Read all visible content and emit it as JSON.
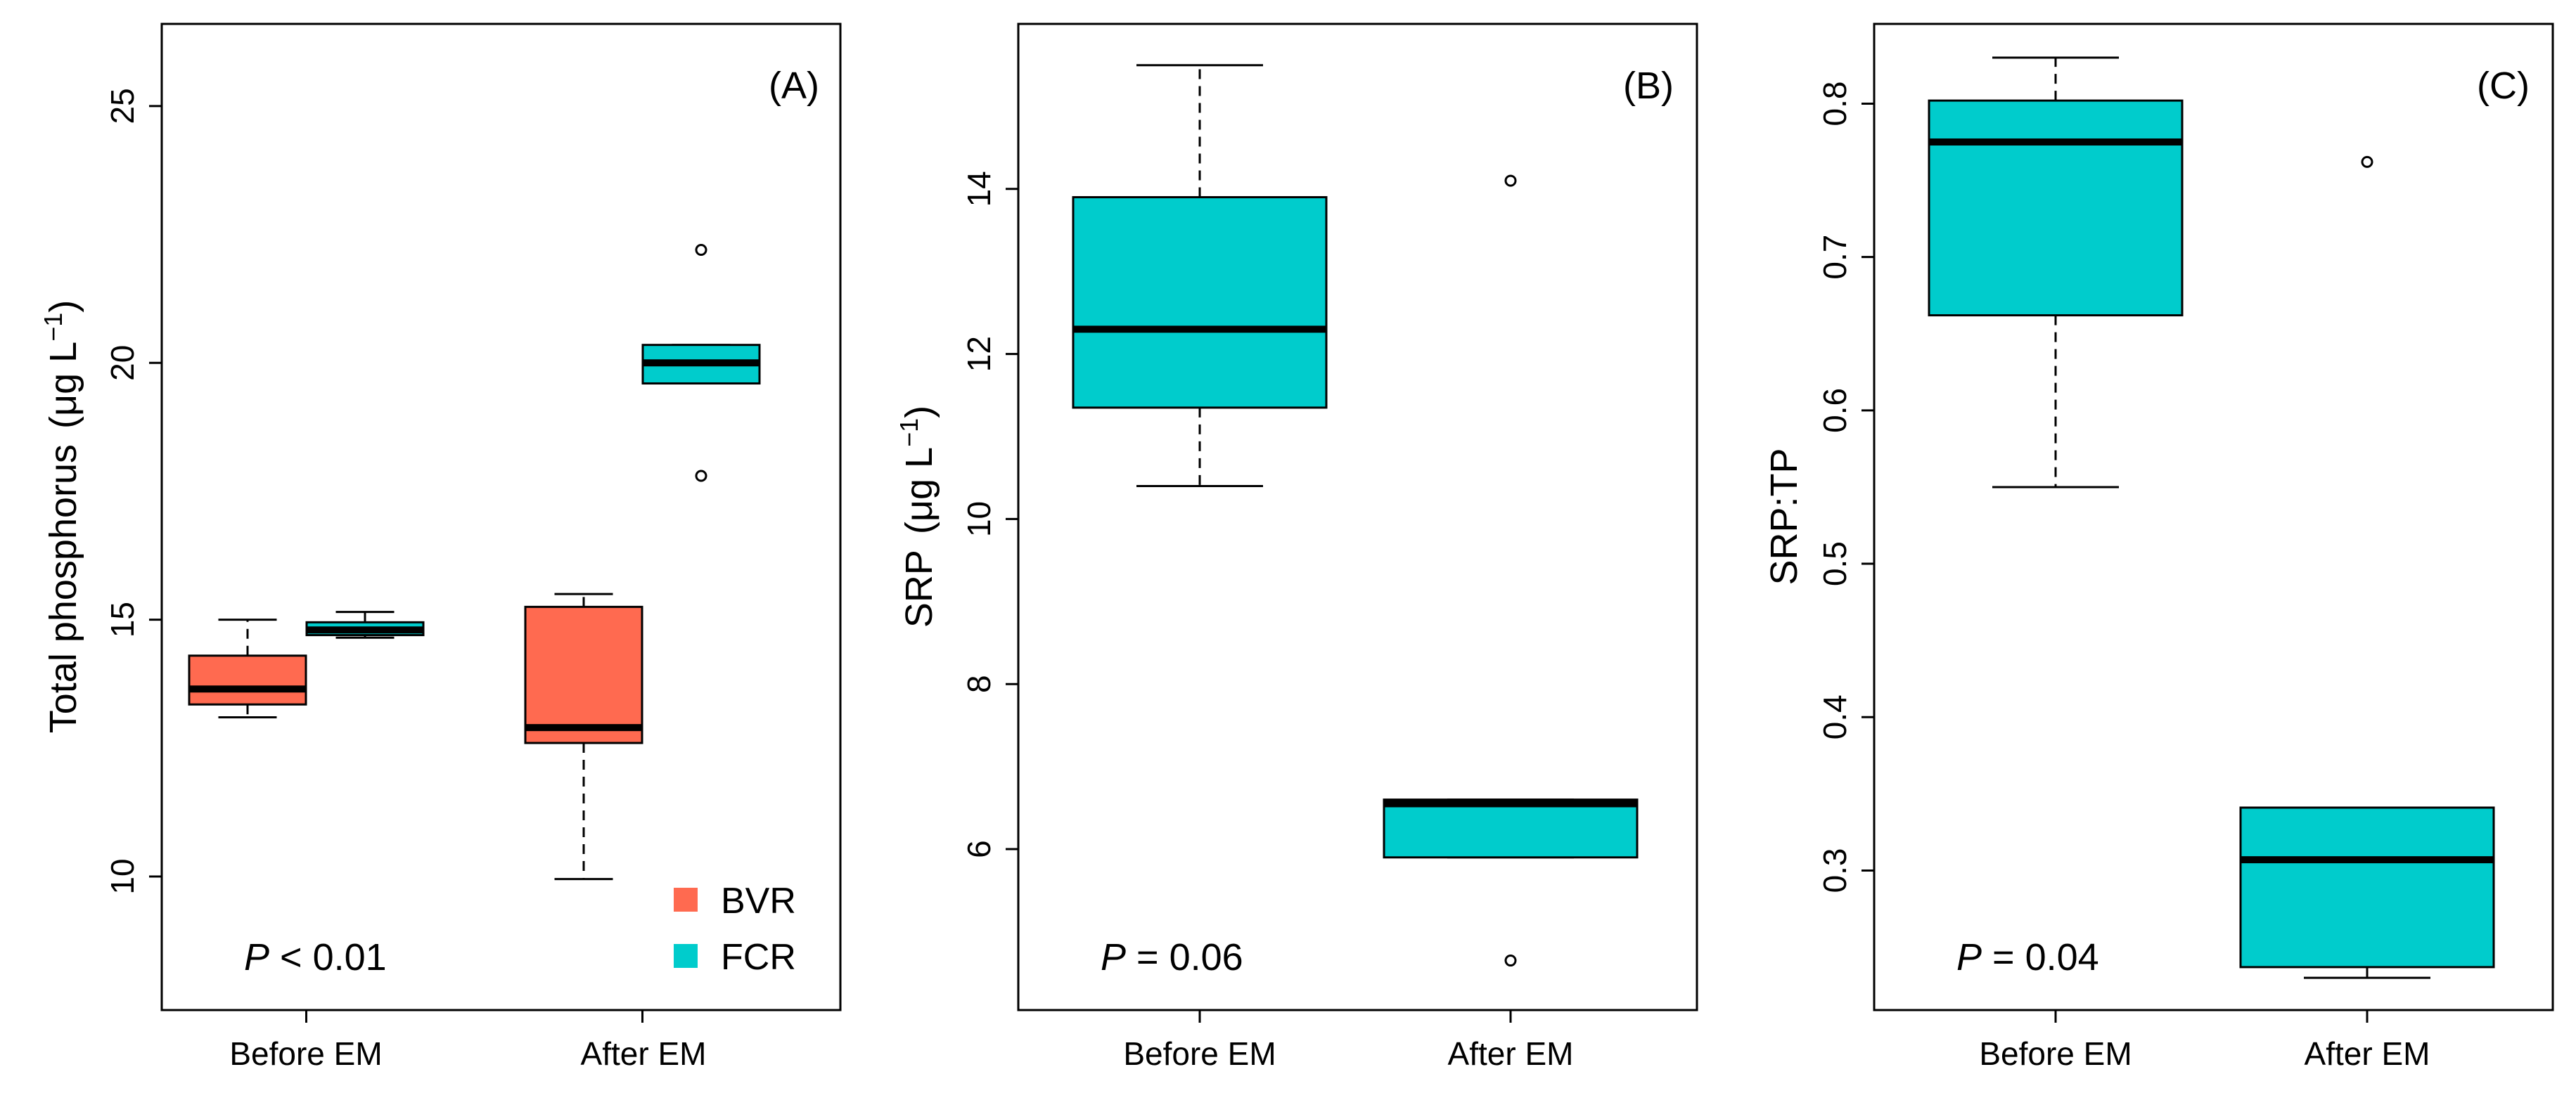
{
  "chart_data": [
    {
      "type": "boxplot",
      "panel_label": "(A)",
      "ylabel": "Total phosphorus",
      "ylabel_unit": "(μg L",
      "ylabel_sup": "−1",
      "ylabel_close": ")",
      "ylim": [
        7.4,
        26.6
      ],
      "yticks": [
        10,
        15,
        20,
        25
      ],
      "ytick_labels": [
        "10",
        "15",
        "20",
        "25"
      ],
      "categories": [
        "Before EM",
        "After EM"
      ],
      "p_symbol": "P",
      "p_rest": " < 0.01",
      "legend": [
        {
          "name": "BVR",
          "color": "#ff6a50"
        },
        {
          "name": "FCR",
          "color": "#00cccc"
        }
      ],
      "boxes": [
        {
          "category": "Before EM",
          "series": "BVR",
          "color": "#ff6a50",
          "whisker_low": 13.1,
          "q1": 13.35,
          "median": 13.65,
          "q3": 14.3,
          "whisker_high": 15.0,
          "outliers": []
        },
        {
          "category": "Before EM",
          "series": "FCR",
          "color": "#00cccc",
          "whisker_low": 14.65,
          "q1": 14.7,
          "median": 14.8,
          "q3": 14.95,
          "whisker_high": 15.15,
          "outliers": []
        },
        {
          "category": "After EM",
          "series": "BVR",
          "color": "#ff6a50",
          "whisker_low": 9.95,
          "q1": 12.6,
          "median": 12.9,
          "q3": 15.25,
          "whisker_high": 15.5,
          "outliers": []
        },
        {
          "category": "After EM",
          "series": "FCR",
          "color": "#00cccc",
          "whisker_low": 19.6,
          "q1": 19.6,
          "median": 20.0,
          "q3": 20.35,
          "whisker_high": 20.35,
          "outliers": [
            22.2,
            17.8
          ]
        }
      ]
    },
    {
      "type": "boxplot",
      "panel_label": "(B)",
      "ylabel": "SRP",
      "ylabel_unit": "(μg L",
      "ylabel_sup": "−1",
      "ylabel_close": ")",
      "ylim": [
        4.05,
        16.0
      ],
      "yticks": [
        6,
        8,
        10,
        12,
        14
      ],
      "ytick_labels": [
        "6",
        "8",
        "10",
        "12",
        "14"
      ],
      "categories": [
        "Before EM",
        "After EM"
      ],
      "p_symbol": "P",
      "p_rest": " = 0.06",
      "boxes": [
        {
          "category": "Before EM",
          "series": "FCR",
          "color": "#00cccc",
          "whisker_low": 10.4,
          "q1": 11.35,
          "median": 12.3,
          "q3": 13.9,
          "whisker_high": 15.5,
          "outliers": []
        },
        {
          "category": "After EM",
          "series": "FCR",
          "color": "#00cccc",
          "whisker_low": 5.9,
          "q1": 5.9,
          "median": 6.55,
          "q3": 6.6,
          "whisker_high": 6.6,
          "outliers": [
            14.1,
            4.65
          ]
        }
      ]
    },
    {
      "type": "boxplot",
      "panel_label": "(C)",
      "ylabel": "SRP:TP",
      "ylim": [
        0.209,
        0.852
      ],
      "yticks": [
        0.3,
        0.4,
        0.5,
        0.6,
        0.7,
        0.8
      ],
      "ytick_labels": [
        "0.3",
        "0.4",
        "0.5",
        "0.6",
        "0.7",
        "0.8"
      ],
      "categories": [
        "Before EM",
        "After EM"
      ],
      "p_symbol": "P",
      "p_rest": " = 0.04",
      "boxes": [
        {
          "category": "Before EM",
          "series": "FCR",
          "color": "#00cccc",
          "whisker_low": 0.55,
          "q1": 0.662,
          "median": 0.775,
          "q3": 0.802,
          "whisker_high": 0.83,
          "outliers": []
        },
        {
          "category": "After EM",
          "series": "FCR",
          "color": "#00cccc",
          "whisker_low": 0.23,
          "q1": 0.237,
          "median": 0.307,
          "q3": 0.341,
          "whisker_high": 0.341,
          "outliers": [
            0.762
          ]
        }
      ]
    }
  ]
}
